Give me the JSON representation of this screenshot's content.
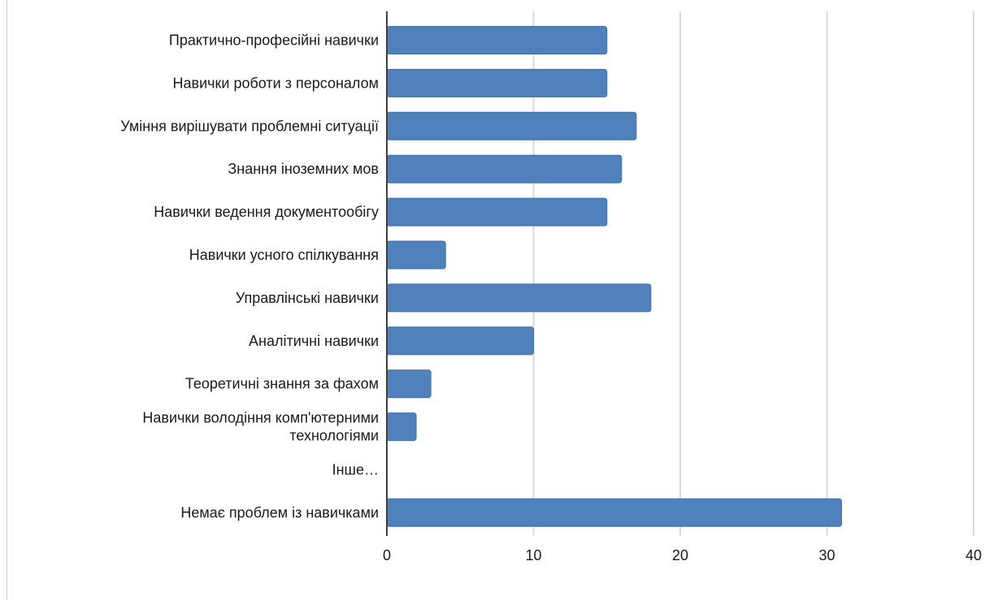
{
  "chart_data": {
    "type": "bar",
    "orientation": "horizontal",
    "title": "",
    "xlabel": "",
    "ylabel": "",
    "categories": [
      [
        "Практично-професійні навички"
      ],
      [
        "Навички роботи з персоналом"
      ],
      [
        "Уміння вирішувати проблемні ситуації"
      ],
      [
        "Знання іноземних мов"
      ],
      [
        "Навички ведення документообігу"
      ],
      [
        "Навички усного спілкування"
      ],
      [
        "Управлінські навички"
      ],
      [
        "Аналітичні навички"
      ],
      [
        "Теоретичні знання за фахом"
      ],
      [
        "Навички володіння комп'ютерними",
        "технологіями"
      ],
      [
        "Інше…"
      ],
      [
        "Немає проблем із навичками"
      ]
    ],
    "values": [
      15,
      15,
      17,
      16,
      15,
      4,
      18,
      10,
      3,
      2,
      0,
      31
    ],
    "xlim": [
      0,
      40
    ],
    "xticks": [
      "0",
      "10",
      "20",
      "30",
      "40"
    ],
    "grid": "vertical",
    "legend": "none",
    "colors": {
      "bar": "#4F81BD",
      "bar_edge": "#3f6fa8",
      "grid": "#d9d9d9",
      "axis": "#404040",
      "text": "#1a1a1a"
    }
  }
}
